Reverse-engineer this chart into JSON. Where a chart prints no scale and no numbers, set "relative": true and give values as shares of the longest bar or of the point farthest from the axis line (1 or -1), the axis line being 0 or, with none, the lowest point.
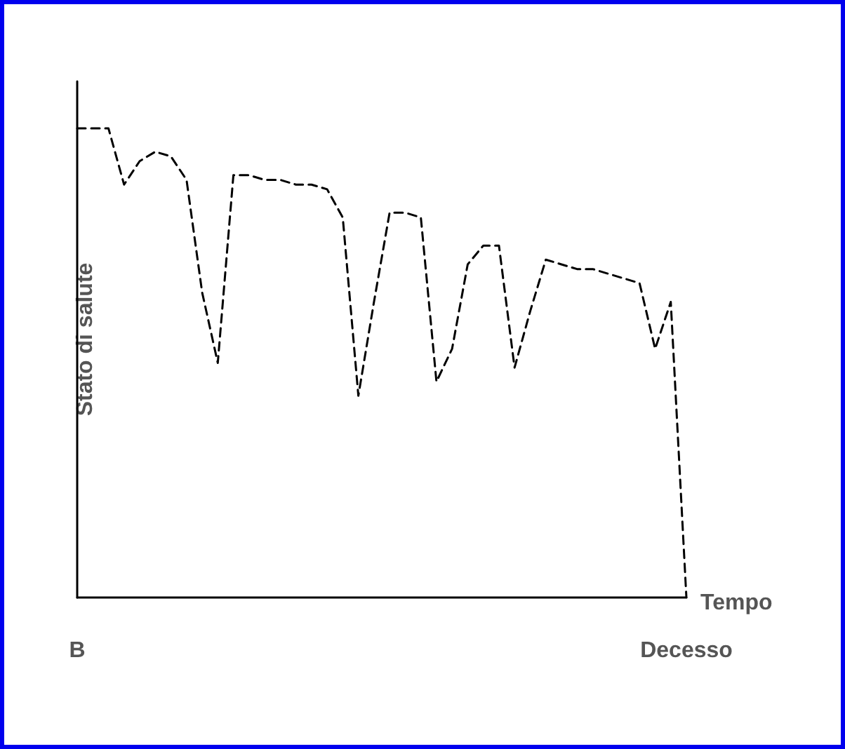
{
  "chart_data": {
    "type": "line",
    "xlabel": "Tempo",
    "ylabel": "Stato di salute",
    "relative": true,
    "line_style": "dashed",
    "marker": "none",
    "grid": false,
    "categories": [
      "B",
      null,
      null,
      null,
      null,
      null,
      null,
      null,
      null,
      null,
      null,
      null,
      null,
      null,
      null,
      null,
      null,
      null,
      null,
      null,
      null,
      null,
      null,
      null,
      null,
      null,
      null,
      null,
      null,
      null,
      null,
      null,
      null,
      null,
      null,
      null,
      null,
      null,
      null,
      "Decesso"
    ],
    "series": [
      {
        "color": "#000000",
        "values": [
          1,
          1,
          1,
          0.88,
          0.93,
          0.95,
          0.94,
          0.89,
          0.65,
          0.5,
          0.9,
          0.9,
          0.89,
          0.89,
          0.88,
          0.88,
          0.87,
          0.81,
          0.43,
          0.63,
          0.82,
          0.82,
          0.81,
          0.46,
          0.53,
          0.71,
          0.75,
          0.75,
          0.49,
          0.61,
          0.72,
          0.71,
          0.7,
          0.7,
          0.69,
          0.68,
          0.67,
          0.53,
          0.63,
          0
        ]
      }
    ]
  }
}
